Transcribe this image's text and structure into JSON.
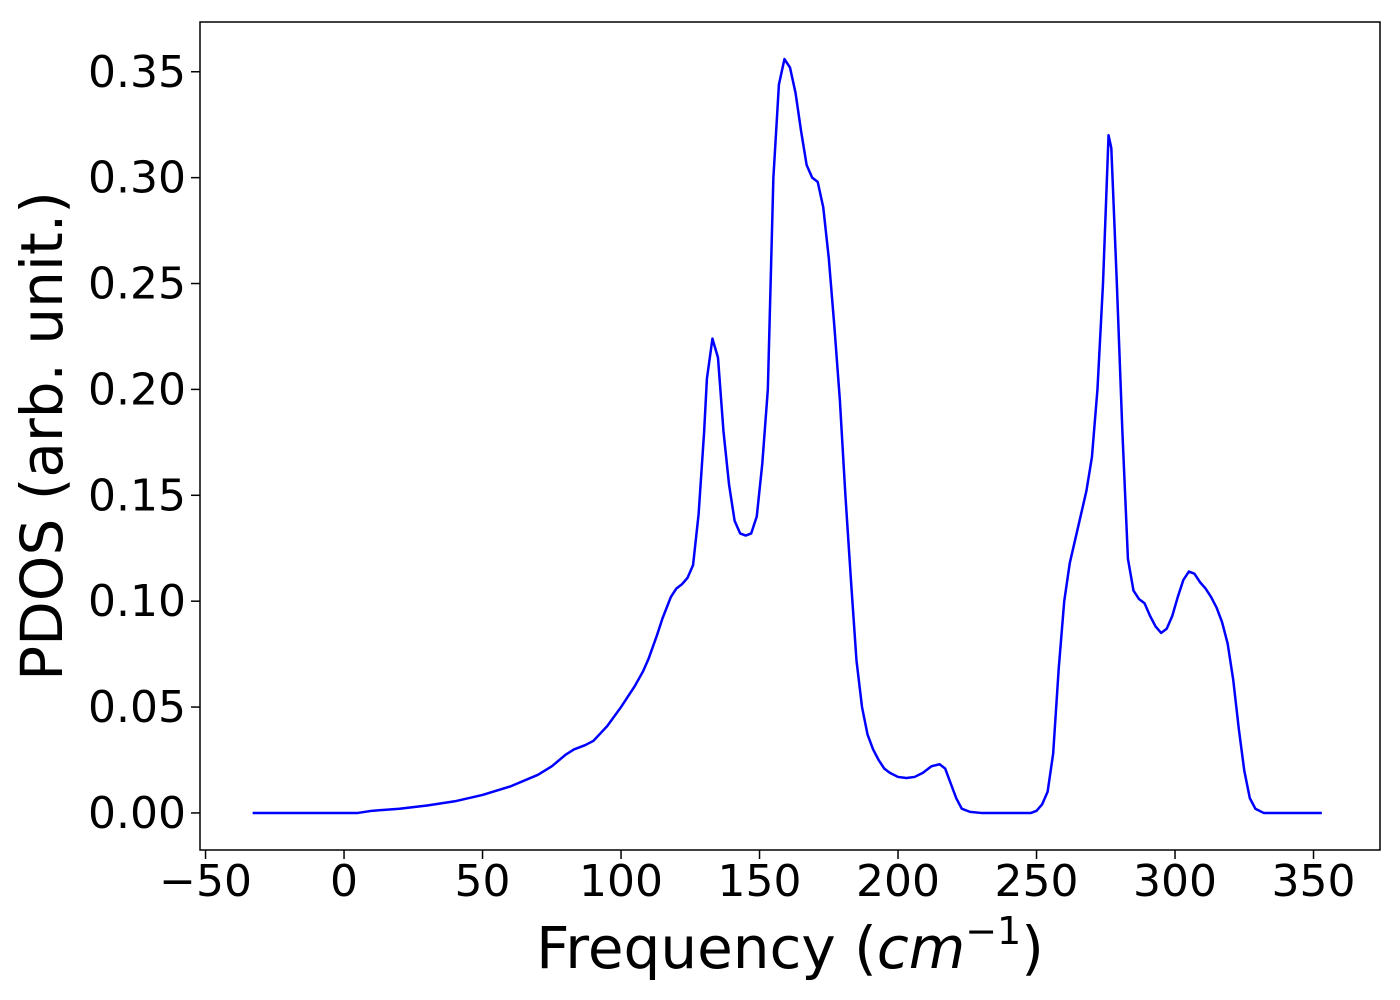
{
  "chart_data": {
    "type": "line",
    "title": "",
    "xlabel_prefix": "Frequency (",
    "xlabel_unit_base": "cm",
    "xlabel_unit_exponent": "−1",
    "xlabel_suffix": ")",
    "ylabel": "PDOS (arb. unit.)",
    "xlim": [
      -52,
      374
    ],
    "ylim": [
      -0.0175,
      0.3735
    ],
    "xticks": [
      -50,
      0,
      50,
      100,
      150,
      200,
      250,
      300,
      350
    ],
    "xtick_labels": [
      "−50",
      "0",
      "50",
      "100",
      "150",
      "200",
      "250",
      "300",
      "350"
    ],
    "yticks": [
      0.0,
      0.05,
      0.1,
      0.15,
      0.2,
      0.25,
      0.3,
      0.35
    ],
    "ytick_labels": [
      "0.00",
      "0.05",
      "0.10",
      "0.15",
      "0.20",
      "0.25",
      "0.30",
      "0.35"
    ],
    "grid": false,
    "series": [
      {
        "color": "#0000ff",
        "x": [
          -33,
          -20,
          0,
          5,
          10,
          20,
          30,
          40,
          50,
          60,
          70,
          75,
          80,
          83,
          87,
          90,
          95,
          100,
          105,
          108,
          110,
          113,
          115,
          118,
          120,
          122,
          124,
          126,
          128,
          130,
          131,
          133,
          135,
          137,
          139,
          141,
          143,
          145,
          147,
          149,
          151,
          153,
          155,
          157,
          159,
          161,
          163,
          165,
          167,
          169,
          171,
          173,
          175,
          177,
          179,
          181,
          183,
          185,
          187,
          189,
          191,
          193,
          195,
          197,
          200,
          203,
          206,
          209,
          212,
          215,
          217,
          219,
          221,
          223,
          226,
          230,
          240,
          248,
          250,
          252,
          254,
          256,
          258,
          260,
          262,
          265,
          268,
          270,
          272,
          274,
          276,
          277,
          279,
          281,
          283,
          285,
          287,
          289,
          291,
          293,
          295,
          297,
          299,
          301,
          303,
          305,
          307,
          309,
          311,
          313,
          315,
          317,
          319,
          321,
          323,
          325,
          327,
          329,
          332,
          340,
          353
        ],
        "y": [
          0.0,
          0.0,
          0.0,
          0.0,
          0.001,
          0.002,
          0.0035,
          0.0055,
          0.0085,
          0.0125,
          0.018,
          0.022,
          0.0275,
          0.03,
          0.032,
          0.034,
          0.041,
          0.05,
          0.06,
          0.067,
          0.073,
          0.084,
          0.092,
          0.102,
          0.106,
          0.108,
          0.111,
          0.117,
          0.141,
          0.18,
          0.205,
          0.224,
          0.215,
          0.18,
          0.155,
          0.138,
          0.132,
          0.131,
          0.132,
          0.14,
          0.165,
          0.2,
          0.3,
          0.344,
          0.356,
          0.352,
          0.34,
          0.322,
          0.306,
          0.3,
          0.298,
          0.286,
          0.262,
          0.23,
          0.195,
          0.15,
          0.11,
          0.072,
          0.05,
          0.037,
          0.03,
          0.025,
          0.021,
          0.019,
          0.017,
          0.0165,
          0.017,
          0.019,
          0.022,
          0.023,
          0.021,
          0.014,
          0.007,
          0.002,
          0.0005,
          0.0,
          0.0,
          0.0,
          0.001,
          0.004,
          0.01,
          0.028,
          0.068,
          0.1,
          0.118,
          0.135,
          0.152,
          0.168,
          0.2,
          0.25,
          0.32,
          0.314,
          0.25,
          0.18,
          0.12,
          0.105,
          0.101,
          0.099,
          0.093,
          0.088,
          0.085,
          0.087,
          0.093,
          0.102,
          0.11,
          0.114,
          0.113,
          0.109,
          0.106,
          0.102,
          0.097,
          0.09,
          0.08,
          0.063,
          0.04,
          0.02,
          0.007,
          0.002,
          0.0,
          0.0,
          0.0
        ]
      }
    ]
  }
}
